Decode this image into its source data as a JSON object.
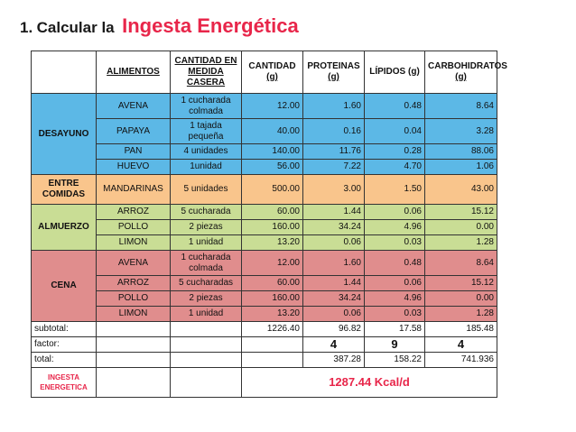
{
  "title": {
    "number": "1.",
    "prefix": "Calcular la",
    "highlight": "Ingesta Energética"
  },
  "headers": {
    "alimentos": "ALIMENTOS",
    "cantidad_medida": "CANTIDAD EN MEDIDA CASERA",
    "cantidad": "CANTIDAD",
    "cantidad_unit": "(g)",
    "proteinas": "PROTEINAS",
    "proteinas_unit": "(g)",
    "lipidos": "LÍPIDOS (g)",
    "carbohidratos": "CARBOHIDRATOS",
    "carbohidratos_unit": "(g)"
  },
  "sections": {
    "desayuno": "DESAYUNO",
    "entre_comidas": "ENTRE COMIDAS",
    "almuerzo": "ALMUERZO",
    "cena": "CENA"
  },
  "rows": [
    {
      "food": "AVENA",
      "measure": "1 cucharada colmada",
      "cantidad": "12.00",
      "proteinas": "1.60",
      "lipidos": "0.48",
      "carbohidratos": "8.64"
    },
    {
      "food": "PAPAYA",
      "measure": "1 tajada pequeña",
      "cantidad": "40.00",
      "proteinas": "0.16",
      "lipidos": "0.04",
      "carbohidratos": "3.28"
    },
    {
      "food": "PAN",
      "measure": "4 unidades",
      "cantidad": "140.00",
      "proteinas": "11.76",
      "lipidos": "0.28",
      "carbohidratos": "88.06"
    },
    {
      "food": "HUEVO",
      "measure": "1unidad",
      "cantidad": "56.00",
      "proteinas": "7.22",
      "lipidos": "4.70",
      "carbohidratos": "1.06"
    },
    {
      "food": "MANDARINAS",
      "measure": "5 unidades",
      "cantidad": "500.00",
      "proteinas": "3.00",
      "lipidos": "1.50",
      "carbohidratos": "43.00"
    },
    {
      "food": "ARROZ",
      "measure": "5 cucharada",
      "cantidad": "60.00",
      "proteinas": "1.44",
      "lipidos": "0.06",
      "carbohidratos": "15.12"
    },
    {
      "food": "POLLO",
      "measure": "2 piezas",
      "cantidad": "160.00",
      "proteinas": "34.24",
      "lipidos": "4.96",
      "carbohidratos": "0.00"
    },
    {
      "food": "LIMON",
      "measure": "1 unidad",
      "cantidad": "13.20",
      "proteinas": "0.06",
      "lipidos": "0.03",
      "carbohidratos": "1.28"
    },
    {
      "food": "AVENA",
      "measure": "1 cucharada colmada",
      "cantidad": "12.00",
      "proteinas": "1.60",
      "lipidos": "0.48",
      "carbohidratos": "8.64"
    },
    {
      "food": "ARROZ",
      "measure": "5 cucharadas",
      "cantidad": "60.00",
      "proteinas": "1.44",
      "lipidos": "0.06",
      "carbohidratos": "15.12"
    },
    {
      "food": "POLLO",
      "measure": "2 piezas",
      "cantidad": "160.00",
      "proteinas": "34.24",
      "lipidos": "4.96",
      "carbohidratos": "0.00"
    },
    {
      "food": "LIMON",
      "measure": "1 unidad",
      "cantidad": "13.20",
      "proteinas": "0.06",
      "lipidos": "0.03",
      "carbohidratos": "1.28"
    }
  ],
  "subtotal": {
    "label": "subtotal:",
    "cantidad": "1226.40",
    "proteinas": "96.82",
    "lipidos": "17.58",
    "carbohidratos": "185.48"
  },
  "factor": {
    "label": "factor:",
    "proteinas": "4",
    "lipidos": "9",
    "carbohidratos": "4"
  },
  "total": {
    "label": "total:",
    "proteinas": "387.28",
    "lipidos": "158.22",
    "carbohidratos": "741.936"
  },
  "ingesta": {
    "label_line1": "INGESTA",
    "label_line2": "ENERGETICA",
    "value": "1287.44  Kcal/d"
  },
  "colors": {
    "title_accent": "#e8264a",
    "desayuno": "#5cb8e6",
    "entre_comidas": "#f9c58c",
    "almuerzo": "#c9dd95",
    "cena": "#e08d8d"
  }
}
